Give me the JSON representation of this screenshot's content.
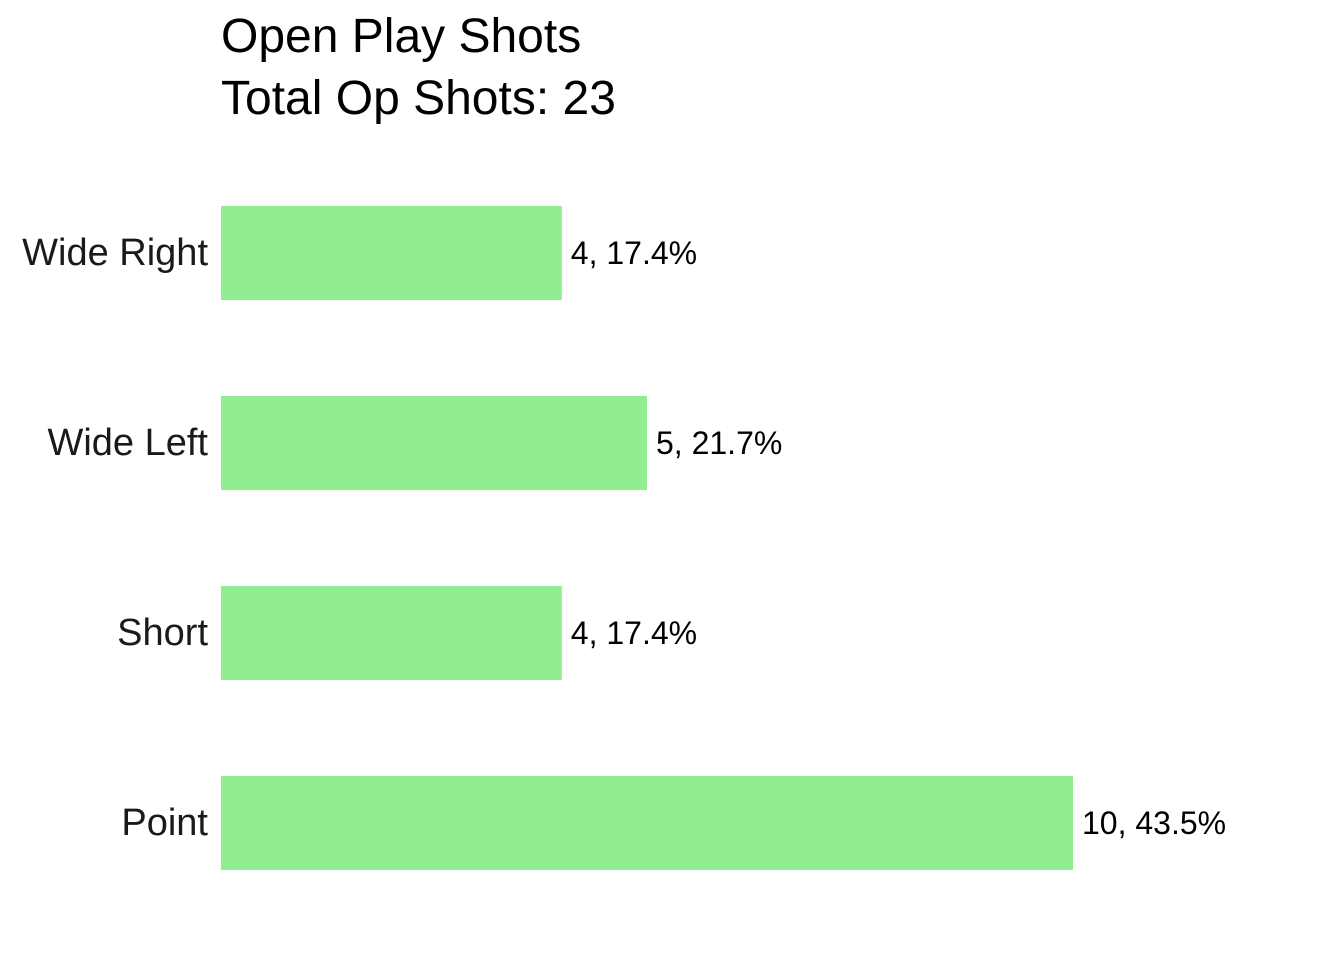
{
  "chart_data": {
    "type": "bar",
    "orientation": "horizontal",
    "title": "Open Play Shots",
    "subtitle": "Total Op Shots: 23",
    "categories": [
      "Wide Right",
      "Wide Left",
      "Short",
      "Point"
    ],
    "values": [
      4,
      5,
      4,
      10
    ],
    "data_labels": [
      "4, 17.4%",
      "5, 21.7%",
      "4, 17.4%",
      "10, 43.5%"
    ],
    "xlim": [
      0,
      10
    ],
    "grid": false,
    "axes_visible": false,
    "bar_color": "#90ee90"
  }
}
